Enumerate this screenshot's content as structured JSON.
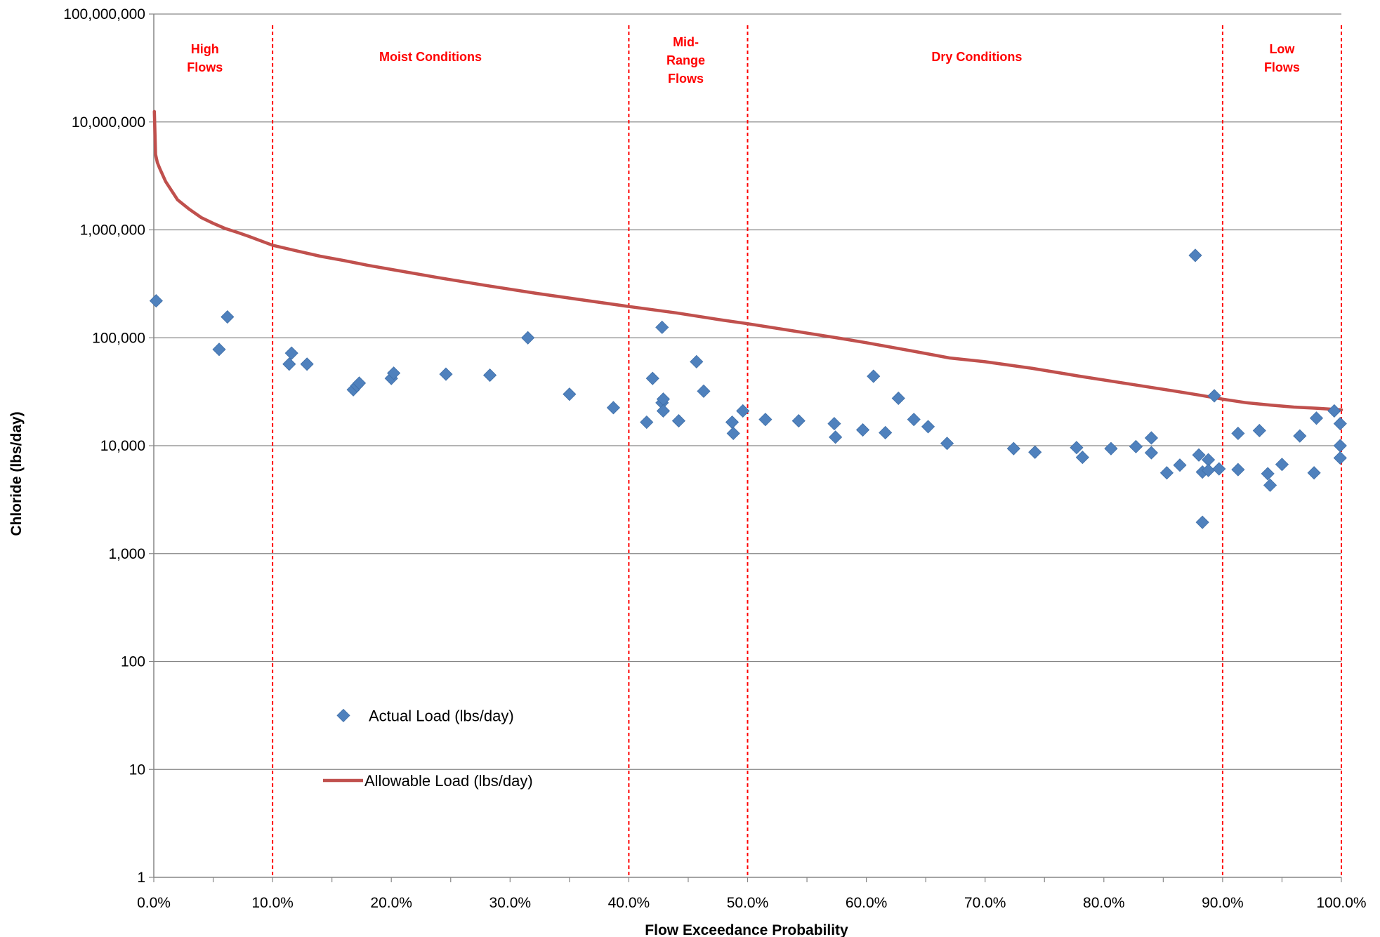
{
  "chart_data": {
    "type": "scatter",
    "title": "",
    "xlabel": "Flow Exceedance Probability",
    "ylabel": "Chloride (lbs/day)",
    "x_unit": "percent",
    "xlim": [
      0,
      100
    ],
    "ylim": [
      1,
      100000000
    ],
    "y_scale": "log",
    "grid": "horizontal",
    "x_ticks": [
      {
        "value": 0,
        "label": "0.0%"
      },
      {
        "value": 10,
        "label": "10.0%"
      },
      {
        "value": 20,
        "label": "20.0%"
      },
      {
        "value": 30,
        "label": "30.0%"
      },
      {
        "value": 40,
        "label": "40.0%"
      },
      {
        "value": 50,
        "label": "50.0%"
      },
      {
        "value": 60,
        "label": "60.0%"
      },
      {
        "value": 70,
        "label": "70.0%"
      },
      {
        "value": 80,
        "label": "80.0%"
      },
      {
        "value": 90,
        "label": "90.0%"
      },
      {
        "value": 100,
        "label": "100.0%"
      }
    ],
    "y_ticks": [
      {
        "value": 1,
        "label": "1"
      },
      {
        "value": 10,
        "label": "10"
      },
      {
        "value": 100,
        "label": "100"
      },
      {
        "value": 1000,
        "label": "1,000"
      },
      {
        "value": 10000,
        "label": "10,000"
      },
      {
        "value": 100000,
        "label": "100,000"
      },
      {
        "value": 1000000,
        "label": "1,000,000"
      },
      {
        "value": 10000000,
        "label": "10,000,000"
      },
      {
        "value": 100000000,
        "label": "100,000,000"
      }
    ],
    "zone_boundaries": [
      10,
      40,
      50,
      90,
      100
    ],
    "zones": [
      {
        "lines": [
          "High",
          "Flows"
        ],
        "x_center": 4.3
      },
      {
        "lines": [
          "Moist Conditions"
        ],
        "x_center": 23.3
      },
      {
        "lines": [
          "Mid-",
          "Range",
          "Flows"
        ],
        "x_center": 44.8
      },
      {
        "lines": [
          "Dry Conditions"
        ],
        "x_center": 69.3
      },
      {
        "lines": [
          "Low",
          "Flows"
        ],
        "x_center": 95.0
      }
    ],
    "legend": {
      "position": "lower-left",
      "entries": [
        "Actual Load (lbs/day)",
        "Allowable Load (lbs/day)"
      ]
    },
    "colors": {
      "actual": "#4f81bd",
      "allowable": "#c0504d",
      "boundary": "#ff0000",
      "grid": "#868686"
    },
    "series": [
      {
        "name": "Actual Load (lbs/day)",
        "type": "scatter",
        "points": [
          [
            0.2,
            220000
          ],
          [
            5.5,
            78000
          ],
          [
            6.2,
            156000
          ],
          [
            11.4,
            57000
          ],
          [
            11.6,
            72000
          ],
          [
            12.9,
            57000
          ],
          [
            16.8,
            33000
          ],
          [
            17.1,
            36000
          ],
          [
            17.3,
            38000
          ],
          [
            20.0,
            42000
          ],
          [
            20.2,
            47000
          ],
          [
            24.6,
            46000
          ],
          [
            28.3,
            45000
          ],
          [
            31.5,
            100000
          ],
          [
            35.0,
            30000
          ],
          [
            38.7,
            22500
          ],
          [
            41.5,
            16500
          ],
          [
            42.0,
            42000
          ],
          [
            42.8,
            125000
          ],
          [
            42.8,
            25000
          ],
          [
            42.9,
            27000
          ],
          [
            42.9,
            21000
          ],
          [
            44.2,
            17000
          ],
          [
            45.7,
            60000
          ],
          [
            46.3,
            32000
          ],
          [
            48.7,
            16500
          ],
          [
            48.8,
            13000
          ],
          [
            49.6,
            21000
          ],
          [
            51.5,
            17500
          ],
          [
            54.3,
            17000
          ],
          [
            57.3,
            16000
          ],
          [
            57.4,
            12000
          ],
          [
            59.7,
            14000
          ],
          [
            60.6,
            44000
          ],
          [
            61.6,
            13200
          ],
          [
            62.7,
            27500
          ],
          [
            64.0,
            17500
          ],
          [
            65.2,
            15000
          ],
          [
            66.8,
            10500
          ],
          [
            72.4,
            9400
          ],
          [
            74.2,
            8700
          ],
          [
            77.7,
            9600
          ],
          [
            78.2,
            7800
          ],
          [
            80.6,
            9400
          ],
          [
            82.7,
            9800
          ],
          [
            84.0,
            11800
          ],
          [
            84.0,
            8600
          ],
          [
            85.3,
            5600
          ],
          [
            86.4,
            6600
          ],
          [
            87.7,
            580000
          ],
          [
            88.0,
            8200
          ],
          [
            88.3,
            5700
          ],
          [
            88.3,
            1950
          ],
          [
            88.8,
            7400
          ],
          [
            88.8,
            5900
          ],
          [
            89.3,
            29000
          ],
          [
            89.7,
            6100
          ],
          [
            91.3,
            13000
          ],
          [
            91.3,
            6000
          ],
          [
            93.1,
            13800
          ],
          [
            93.8,
            5500
          ],
          [
            94.0,
            4300
          ],
          [
            95.0,
            6700
          ],
          [
            96.5,
            12300
          ],
          [
            97.7,
            5600
          ],
          [
            97.9,
            18000
          ],
          [
            99.4,
            21000
          ],
          [
            99.9,
            16000
          ],
          [
            99.9,
            10000
          ],
          [
            99.9,
            7700
          ]
        ]
      },
      {
        "name": "Allowable Load (lbs/day)",
        "type": "line",
        "points": [
          [
            0.05,
            12500000
          ],
          [
            0.15,
            5000000
          ],
          [
            0.3,
            4200000
          ],
          [
            0.5,
            3700000
          ],
          [
            1.0,
            2800000
          ],
          [
            2.0,
            1900000
          ],
          [
            3.0,
            1550000
          ],
          [
            4.0,
            1300000
          ],
          [
            5.0,
            1150000
          ],
          [
            6.0,
            1030000
          ],
          [
            7.0,
            950000
          ],
          [
            8.0,
            870000
          ],
          [
            10.0,
            720000
          ],
          [
            12.0,
            640000
          ],
          [
            14.0,
            570000
          ],
          [
            16.0,
            520000
          ],
          [
            18.0,
            470000
          ],
          [
            20.0,
            430000
          ],
          [
            24.0,
            360000
          ],
          [
            28.0,
            305000
          ],
          [
            32.0,
            260000
          ],
          [
            36.0,
            225000
          ],
          [
            40.0,
            195000
          ],
          [
            44.0,
            170000
          ],
          [
            48.0,
            145000
          ],
          [
            50.0,
            135000
          ],
          [
            54.0,
            115000
          ],
          [
            58.0,
            98000
          ],
          [
            60.0,
            90000
          ],
          [
            64.0,
            75000
          ],
          [
            67.0,
            65000
          ],
          [
            70.0,
            60000
          ],
          [
            74.0,
            52000
          ],
          [
            78.0,
            44000
          ],
          [
            82.0,
            37500
          ],
          [
            86.0,
            32000
          ],
          [
            88.0,
            29500
          ],
          [
            90.0,
            27000
          ],
          [
            92.0,
            25000
          ],
          [
            94.0,
            23800
          ],
          [
            96.0,
            22800
          ],
          [
            98.0,
            22200
          ],
          [
            100.0,
            21500
          ]
        ]
      }
    ]
  }
}
